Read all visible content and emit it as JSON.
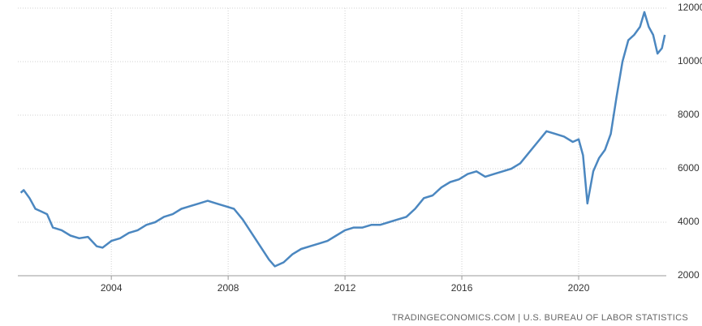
{
  "chart_data": {
    "type": "line",
    "x": [
      2000.9,
      2001.0,
      2001.2,
      2001.4,
      2001.6,
      2001.8,
      2002.0,
      2002.3,
      2002.6,
      2002.9,
      2003.2,
      2003.5,
      2003.7,
      2004.0,
      2004.3,
      2004.6,
      2004.9,
      2005.2,
      2005.5,
      2005.8,
      2006.1,
      2006.4,
      2006.7,
      2007.0,
      2007.3,
      2007.6,
      2007.9,
      2008.2,
      2008.5,
      2008.8,
      2009.1,
      2009.4,
      2009.6,
      2009.9,
      2010.2,
      2010.5,
      2010.8,
      2011.1,
      2011.4,
      2011.7,
      2012.0,
      2012.3,
      2012.6,
      2012.9,
      2013.2,
      2013.5,
      2013.8,
      2014.1,
      2014.4,
      2014.7,
      2015.0,
      2015.3,
      2015.6,
      2015.9,
      2016.2,
      2016.5,
      2016.8,
      2017.1,
      2017.4,
      2017.7,
      2018.0,
      2018.3,
      2018.6,
      2018.9,
      2019.2,
      2019.5,
      2019.8,
      2020.0,
      2020.15,
      2020.3,
      2020.5,
      2020.7,
      2020.9,
      2021.1,
      2021.3,
      2021.5,
      2021.7,
      2021.9,
      2022.1,
      2022.25,
      2022.4,
      2022.55,
      2022.7,
      2022.85,
      2022.95
    ],
    "series": [
      {
        "color": "#4b87c0",
        "values": [
          5100,
          5200,
          4900,
          4500,
          4400,
          4300,
          3800,
          3700,
          3500,
          3400,
          3450,
          3100,
          3050,
          3300,
          3400,
          3600,
          3700,
          3900,
          4000,
          4200,
          4300,
          4500,
          4600,
          4700,
          4800,
          4700,
          4600,
          4500,
          4100,
          3600,
          3100,
          2600,
          2350,
          2500,
          2800,
          3000,
          3100,
          3200,
          3300,
          3500,
          3700,
          3800,
          3800,
          3900,
          3900,
          4000,
          4100,
          4200,
          4500,
          4900,
          5000,
          5300,
          5500,
          5600,
          5800,
          5900,
          5700,
          5800,
          5900,
          6000,
          6200,
          6600,
          7000,
          7400,
          7300,
          7200,
          7000,
          7100,
          6500,
          4700,
          5900,
          6400,
          6700,
          7300,
          8700,
          10000,
          10800,
          11000,
          11300,
          11850,
          11300,
          11000,
          10300,
          10500,
          11000
        ]
      }
    ],
    "xlim": [
      2000.8,
      2023.0
    ],
    "xticks": [
      2004,
      2008,
      2012,
      2016,
      2020
    ],
    "ylim": [
      2000,
      12000
    ],
    "yticks": [
      2000,
      4000,
      6000,
      8000,
      10000,
      12000
    ],
    "grid": true,
    "source": "TRADINGECONOMICS.COM | U.S. BUREAU OF LABOR STATISTICS"
  }
}
